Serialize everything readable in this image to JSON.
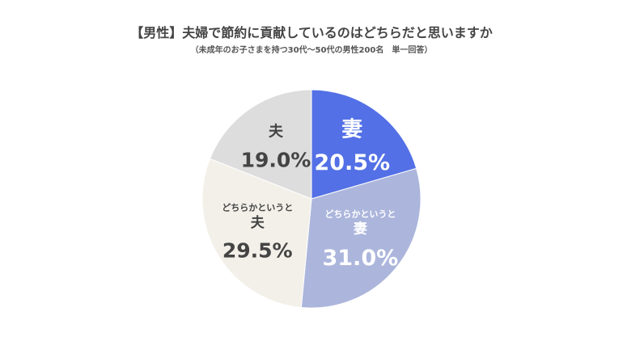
{
  "chart_data": {
    "type": "pie",
    "title": "【男性】夫婦で節約に貢献しているのはどちらだと思いますか",
    "subtitle": "（未成年のお子さまを持つ30代〜50代の男性200名　単一回答）",
    "slices": [
      {
        "name": "妻",
        "label_lines": [
          "妻"
        ],
        "value": 20.5,
        "value_label": "20.5%",
        "color": "#5370e6",
        "text_color": "#ffffff"
      },
      {
        "name": "どちらかというと妻",
        "label_lines": [
          "どちらかというと",
          "妻"
        ],
        "value": 31.0,
        "value_label": "31.0%",
        "color": "#acb6dc",
        "text_color": "#ffffff"
      },
      {
        "name": "どちらかというと夫",
        "label_lines": [
          "どちらかというと",
          "夫"
        ],
        "value": 29.5,
        "value_label": "29.5%",
        "color": "#f2f0e8",
        "text_color": "#444444"
      },
      {
        "name": "夫",
        "label_lines": [
          "夫"
        ],
        "value": 19.0,
        "value_label": "19.0%",
        "color": "#dddddd",
        "text_color": "#444444"
      }
    ],
    "start_angle_deg": 0,
    "direction": "clockwise",
    "legend": "none"
  }
}
